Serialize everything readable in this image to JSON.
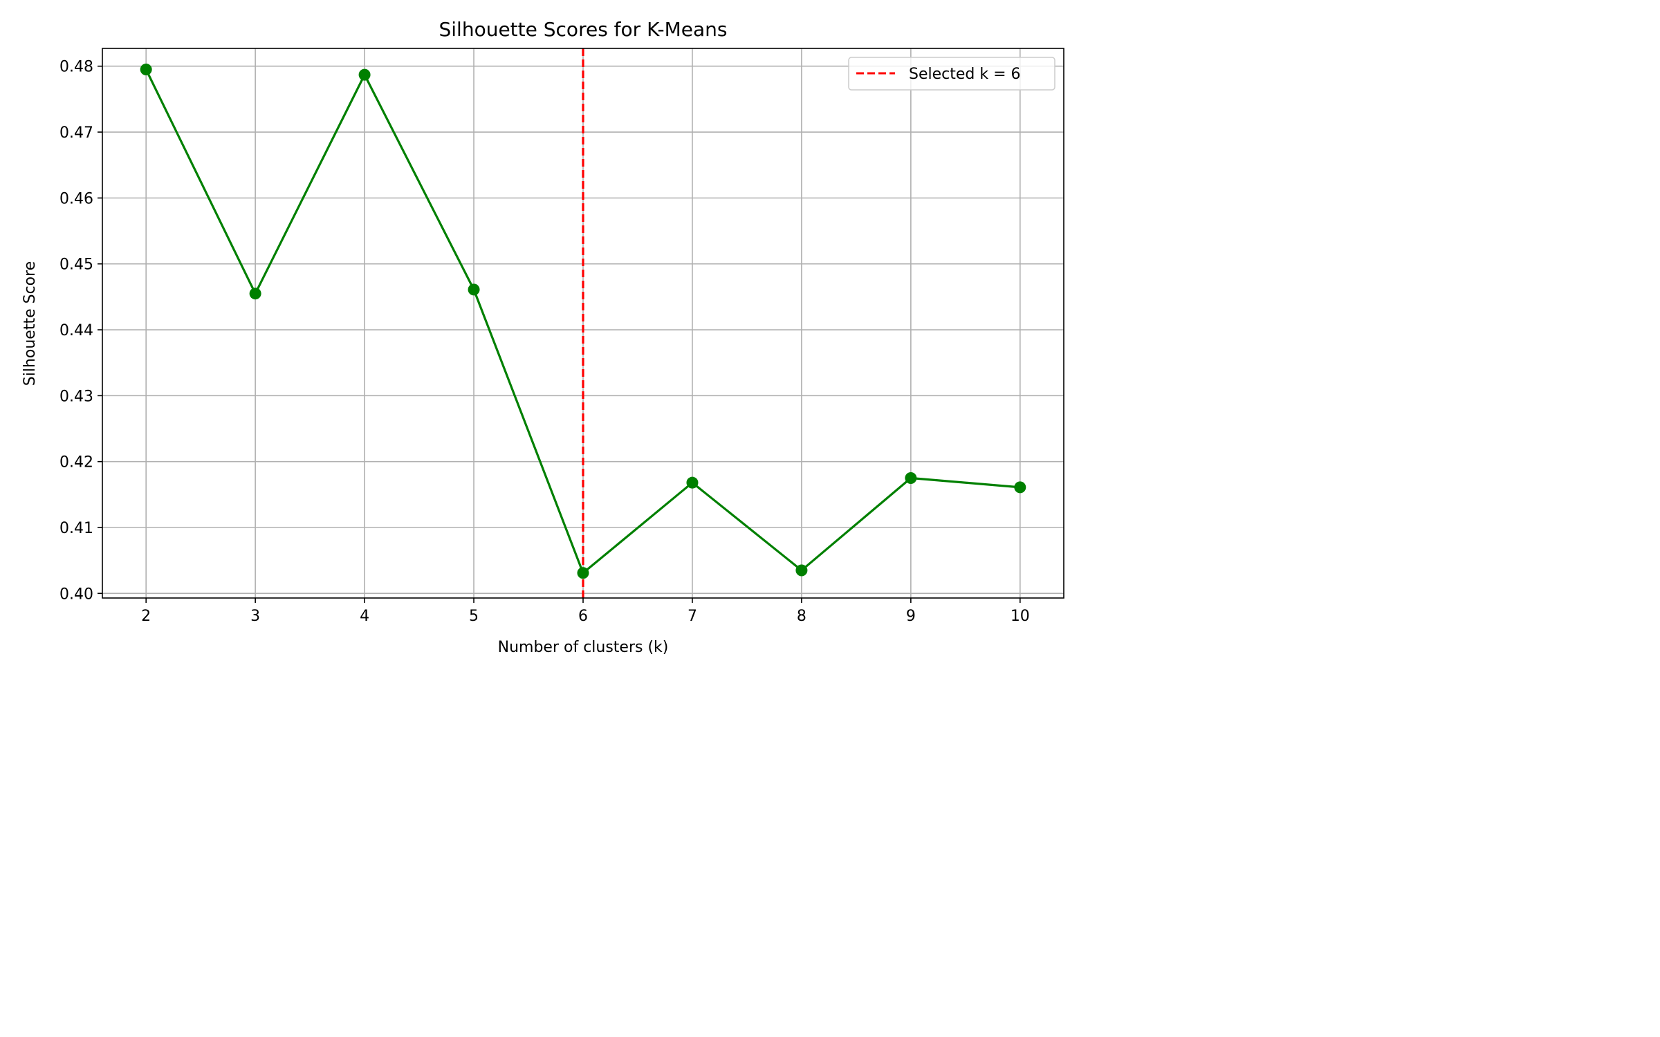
{
  "chart_data": {
    "type": "line",
    "title": "Silhouette Scores for K-Means",
    "xlabel": "Number of clusters (k)",
    "ylabel": "Silhouette Score",
    "x": [
      2,
      3,
      4,
      5,
      6,
      7,
      8,
      9,
      10
    ],
    "series": [
      {
        "values": [
          0.4795,
          0.4455,
          0.4787,
          0.4461,
          0.4031,
          0.4168,
          0.4035,
          0.4175,
          0.4161
        ],
        "color": "#008000",
        "marker": "circle"
      }
    ],
    "xticks": [
      "2",
      "3",
      "4",
      "5",
      "6",
      "7",
      "8",
      "9",
      "10"
    ],
    "yticks": [
      "0.40",
      "0.41",
      "0.42",
      "0.43",
      "0.44",
      "0.45",
      "0.46",
      "0.47",
      "0.48"
    ],
    "ytick_values": [
      0.4,
      0.41,
      0.42,
      0.43,
      0.44,
      0.45,
      0.46,
      0.47,
      0.48
    ],
    "xlim": [
      1.6,
      10.4
    ],
    "ylim": [
      0.3993,
      0.4827
    ],
    "grid": true,
    "vline": {
      "x": 6,
      "label": "Selected k = 6",
      "color": "#ff0000",
      "style": "dashed"
    },
    "legend": {
      "position": "top-right",
      "entries": [
        "Selected k = 6"
      ]
    }
  }
}
